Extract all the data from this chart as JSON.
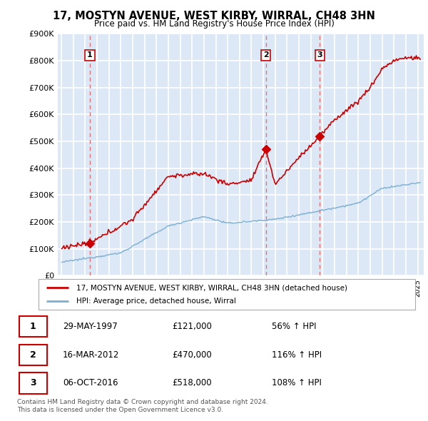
{
  "title": "17, MOSTYN AVENUE, WEST KIRBY, WIRRAL, CH48 3HN",
  "subtitle": "Price paid vs. HM Land Registry's House Price Index (HPI)",
  "ylim": [
    0,
    900000
  ],
  "yticks": [
    0,
    100000,
    200000,
    300000,
    400000,
    500000,
    600000,
    700000,
    800000,
    900000
  ],
  "ytick_labels": [
    "£0",
    "£100K",
    "£200K",
    "£300K",
    "£400K",
    "£500K",
    "£600K",
    "£700K",
    "£800K",
    "£900K"
  ],
  "sale_t": [
    1997.4,
    2012.21,
    2016.75
  ],
  "sale_prices": [
    121000,
    470000,
    518000
  ],
  "sale_labels": [
    "1",
    "2",
    "3"
  ],
  "legend_line1": "17, MOSTYN AVENUE, WEST KIRBY, WIRRAL, CH48 3HN (detached house)",
  "legend_line2": "HPI: Average price, detached house, Wirral",
  "table_rows": [
    [
      "1",
      "29-MAY-1997",
      "£121,000",
      "56% ↑ HPI"
    ],
    [
      "2",
      "16-MAR-2012",
      "£470,000",
      "116% ↑ HPI"
    ],
    [
      "3",
      "06-OCT-2016",
      "£518,000",
      "108% ↑ HPI"
    ]
  ],
  "footer": "Contains HM Land Registry data © Crown copyright and database right 2024.\nThis data is licensed under the Open Government Licence v3.0.",
  "red_color": "#cc0000",
  "blue_color": "#7bafd4",
  "bg_color": "#dce8f5",
  "grid_color": "#ffffff",
  "dash_color": "#e87070"
}
